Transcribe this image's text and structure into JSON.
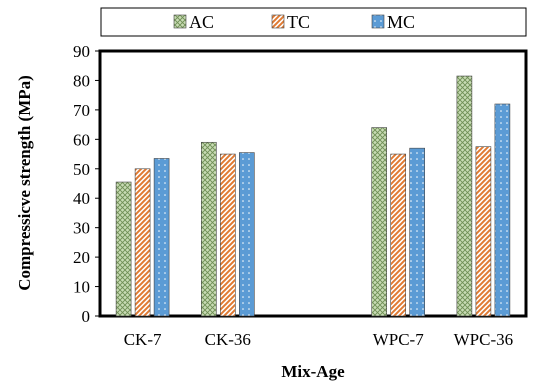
{
  "chart_data": {
    "type": "bar",
    "categories": [
      "CK-7",
      "CK-36",
      "",
      "WPC-7",
      "WPC-36"
    ],
    "series": [
      {
        "name": "AC",
        "values": [
          45.5,
          59,
          null,
          64,
          81.5
        ],
        "color": "#c8dbb4",
        "pattern": "crosshatch"
      },
      {
        "name": "TC",
        "values": [
          50,
          55,
          null,
          55,
          57.5
        ],
        "color": "#e07a33",
        "pattern": "diagonal-stripes"
      },
      {
        "name": "MC",
        "values": [
          53.5,
          55.5,
          null,
          57,
          72
        ],
        "color": "#5b9bd5",
        "pattern": "dots"
      }
    ],
    "xlabel": "Mix-Age",
    "ylabel": "Compressicve strength (MPa)",
    "ylim": [
      0,
      90
    ],
    "yticks": [
      "0",
      "10",
      "20",
      "30",
      "40",
      "50",
      "60",
      "70",
      "80",
      "90"
    ],
    "grid": false,
    "legend_position": "top"
  }
}
